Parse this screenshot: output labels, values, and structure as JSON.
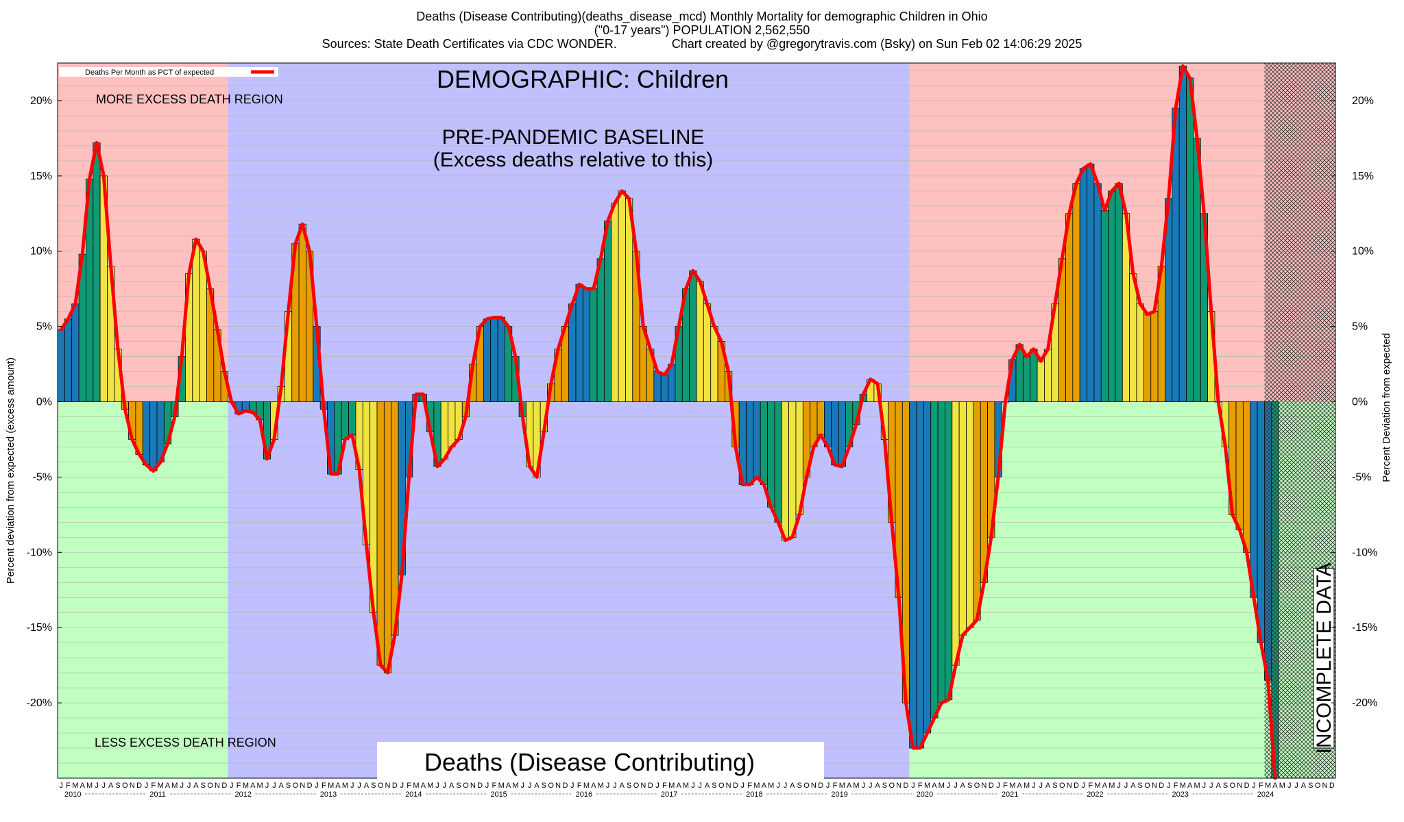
{
  "chart_data": {
    "type": "bar",
    "title_lines": [
      "Deaths (Disease Contributing)(deaths_disease_mcd) Monthly Mortality for demographic Children in Ohio",
      "(\"0-17 years\") POPULATION 2,562,550",
      "Sources: State Death Certificates via CDC WONDER.                Chart created by @gregorytravis.com (Bsky) on Sun Feb 02 14:06:29 2025"
    ],
    "ylabel_left": "Percent deviation from expected (excess amount)",
    "ylabel_right": "Percent Deviation from expected",
    "legend": "Deaths Per Month as PCT of expected",
    "annotations": {
      "demographic": "DEMOGRAPHIC: Children",
      "baseline_line1": "PRE-PANDEMIC BASELINE",
      "baseline_line2": "(Excess deaths relative to this)",
      "more_excess": "MORE EXCESS DEATH REGION",
      "less_excess": "LESS EXCESS DEATH REGION",
      "bottom_label": "Deaths (Disease Contributing)",
      "incomplete": "INCOMPLETE DATA"
    },
    "ylim": [
      -25,
      22.5
    ],
    "yticks": [
      20,
      15,
      10,
      5,
      0,
      -5,
      -10,
      -15,
      -20
    ],
    "ytick_labels": [
      "20%",
      "15%",
      "10%",
      "5%",
      "0%",
      "-5%",
      "-10%",
      "-15%",
      "-20%"
    ],
    "month_letters": [
      "J",
      "F",
      "M",
      "A",
      "M",
      "J",
      "J",
      "A",
      "S",
      "O",
      "N",
      "D"
    ],
    "years": [
      "2010",
      "2011",
      "2012",
      "2013",
      "2014",
      "2015",
      "2016",
      "2017",
      "2018",
      "2019",
      "2020",
      "2021",
      "2022",
      "2023",
      "2024"
    ],
    "baseline_years": [
      "2012",
      "2019"
    ],
    "incomplete_from": "2024-03",
    "series_colors": [
      "#1a7ab8",
      "#0f9a74",
      "#f0e442",
      "#e69f00"
    ],
    "line_color": "#ff0000",
    "region_colors": {
      "excess": "#ffc0c0",
      "deficit": "#c0ffc0",
      "baseline": "#c0c0ff"
    },
    "values": [
      4.8,
      5.5,
      6.5,
      9.8,
      14.8,
      17.2,
      15.0,
      9.0,
      3.5,
      -0.5,
      -2.5,
      -3.5,
      -4.2,
      -4.6,
      -4.0,
      -2.8,
      -1.0,
      3.0,
      8.5,
      10.8,
      10.0,
      7.5,
      4.8,
      2.0,
      0.0,
      -0.8,
      -0.6,
      -0.7,
      -1.2,
      -3.8,
      -2.5,
      1.0,
      6.0,
      10.5,
      11.8,
      10.0,
      5.0,
      -0.5,
      -4.8,
      -4.8,
      -2.5,
      -2.2,
      -4.5,
      -9.5,
      -14.0,
      -17.5,
      -18.0,
      -15.5,
      -11.5,
      -5.0,
      0.5,
      0.5,
      -2.0,
      -4.3,
      -3.8,
      -3.0,
      -2.5,
      -1.0,
      2.5,
      5.0,
      5.5,
      5.6,
      5.6,
      5.0,
      3.0,
      -1.0,
      -4.3,
      -5.0,
      -2.0,
      1.2,
      3.5,
      5.0,
      6.5,
      7.8,
      7.5,
      7.5,
      9.5,
      12.0,
      13.2,
      14.0,
      13.5,
      10.0,
      5.0,
      3.5,
      2.0,
      1.8,
      2.5,
      5.0,
      7.5,
      8.7,
      8.0,
      6.5,
      5.0,
      4.0,
      2.0,
      -3.0,
      -5.5,
      -5.5,
      -5.0,
      -5.5,
      -7.0,
      -8.0,
      -9.2,
      -9.0,
      -7.5,
      -5.0,
      -3.0,
      -2.2,
      -3.0,
      -4.2,
      -4.3,
      -3.0,
      -1.5,
      0.5,
      1.5,
      1.2,
      -2.5,
      -8.0,
      -13.0,
      -20.0,
      -23.0,
      -23.0,
      -22.0,
      -21.0,
      -20.0,
      -19.8,
      -17.5,
      -15.5,
      -15.0,
      -14.5,
      -12.0,
      -9.0,
      -5.0,
      0.0,
      2.8,
      3.8,
      3.0,
      3.5,
      2.7,
      3.5,
      6.5,
      9.5,
      12.5,
      14.5,
      15.5,
      15.8,
      14.5,
      12.7,
      14.0,
      14.5,
      12.5,
      8.5,
      6.5,
      5.8,
      6.0,
      9.0,
      13.5,
      19.5,
      22.3,
      21.5,
      17.5,
      12.5,
      6.0,
      0.0,
      -3.0,
      -7.5,
      -8.5,
      -10.0,
      -13.0,
      -16.0,
      -18.5,
      -25.0
    ]
  }
}
